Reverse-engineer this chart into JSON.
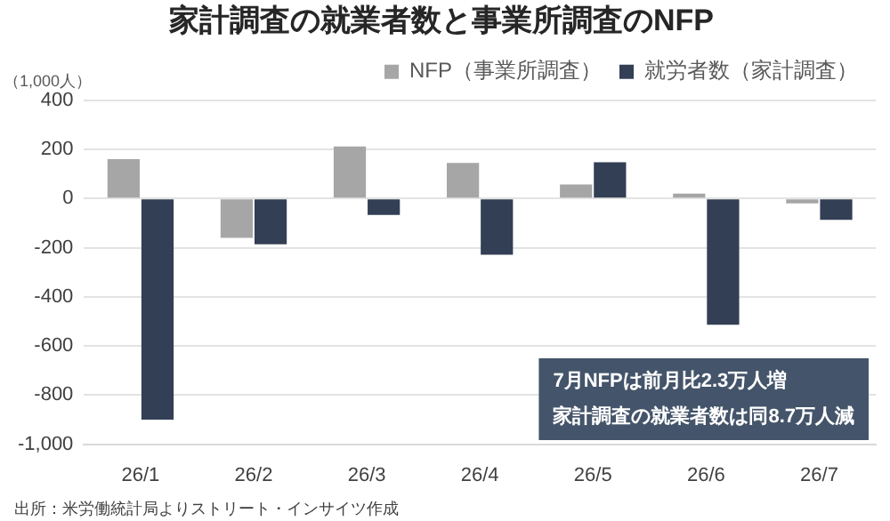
{
  "chart_data": {
    "type": "bar",
    "title": "家計調査の就業者数と事業所調査のNFP",
    "ylabel": "（1,000人）",
    "categories": [
      "26/1",
      "26/2",
      "26/3",
      "26/4",
      "26/5",
      "26/6",
      "26/7"
    ],
    "series": [
      {
        "name": "NFP（事業所調査）",
        "color": "#a6a6a6",
        "values": [
          160,
          -160,
          212,
          145,
          57,
          20,
          -20
        ]
      },
      {
        "name": "就労者数（家計調査）",
        "color": "#333f55",
        "values": [
          -900,
          -186,
          -67,
          -229,
          148,
          -514,
          -87
        ]
      }
    ],
    "ylim": [
      -1000,
      400
    ],
    "yticks": [
      {
        "value": -1000,
        "label": "-1,000"
      },
      -800,
      -600,
      -400,
      -200,
      0,
      200,
      400
    ],
    "grid": "y",
    "legend": "top",
    "annotations": [
      "7月NFPは前月比2.3万人増",
      "家計調査の就業者数は同8.7万人減",
      "出所：米労働統計局よりストリート・インサイツ作成"
    ]
  }
}
